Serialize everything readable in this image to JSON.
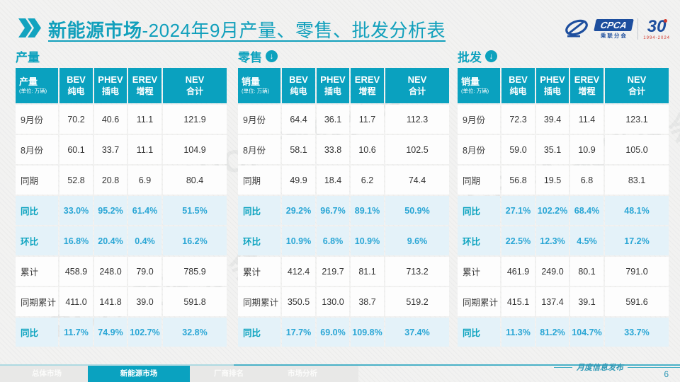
{
  "title": {
    "emphasis": "新能源市场",
    "rest": "-2024年9月产量、零售、批发分析表"
  },
  "logos": {
    "cpca": "CPCA",
    "cpca_sub": "乘联分会",
    "anniversary": "30",
    "anniversary_sub": "1994-2024"
  },
  "watermark": "CPCA 乘联分会",
  "tables": [
    {
      "section": "产量",
      "arrow": false,
      "measure": "产量",
      "unit": "(单位: 万辆)",
      "columns": [
        {
          "en": "BEV",
          "cn": "纯电"
        },
        {
          "en": "PHEV",
          "cn": "插电"
        },
        {
          "en": "EREV",
          "cn": "增程"
        },
        {
          "en": "NEV",
          "cn": "合计"
        }
      ],
      "rows": [
        {
          "label": "9月份",
          "values": [
            "70.2",
            "40.6",
            "11.1",
            "121.9"
          ],
          "highlight": false
        },
        {
          "label": "8月份",
          "values": [
            "60.1",
            "33.7",
            "11.1",
            "104.9"
          ],
          "highlight": false
        },
        {
          "label": "同期",
          "values": [
            "52.8",
            "20.8",
            "6.9",
            "80.4"
          ],
          "highlight": false
        },
        {
          "label": "同比",
          "values": [
            "33.0%",
            "95.2%",
            "61.4%",
            "51.5%"
          ],
          "highlight": true
        },
        {
          "label": "环比",
          "values": [
            "16.8%",
            "20.4%",
            "0.4%",
            "16.2%"
          ],
          "highlight": true
        },
        {
          "label": "累计",
          "values": [
            "458.9",
            "248.0",
            "79.0",
            "785.9"
          ],
          "highlight": false
        },
        {
          "label": "同期累计",
          "values": [
            "411.0",
            "141.8",
            "39.0",
            "591.8"
          ],
          "highlight": false
        },
        {
          "label": "同比",
          "values": [
            "11.7%",
            "74.9%",
            "102.7%",
            "32.8%"
          ],
          "highlight": true
        }
      ]
    },
    {
      "section": "零售",
      "arrow": true,
      "measure": "销量",
      "unit": "(单位: 万辆)",
      "columns": [
        {
          "en": "BEV",
          "cn": "纯电"
        },
        {
          "en": "PHEV",
          "cn": "插电"
        },
        {
          "en": "EREV",
          "cn": "增程"
        },
        {
          "en": "NEV",
          "cn": "合计"
        }
      ],
      "rows": [
        {
          "label": "9月份",
          "values": [
            "64.4",
            "36.1",
            "11.7",
            "112.3"
          ],
          "highlight": false
        },
        {
          "label": "8月份",
          "values": [
            "58.1",
            "33.8",
            "10.6",
            "102.5"
          ],
          "highlight": false
        },
        {
          "label": "同期",
          "values": [
            "49.9",
            "18.4",
            "6.2",
            "74.4"
          ],
          "highlight": false
        },
        {
          "label": "同比",
          "values": [
            "29.2%",
            "96.7%",
            "89.1%",
            "50.9%"
          ],
          "highlight": true
        },
        {
          "label": "环比",
          "values": [
            "10.9%",
            "6.8%",
            "10.9%",
            "9.6%"
          ],
          "highlight": true
        },
        {
          "label": "累计",
          "values": [
            "412.4",
            "219.7",
            "81.1",
            "713.2"
          ],
          "highlight": false
        },
        {
          "label": "同期累计",
          "values": [
            "350.5",
            "130.0",
            "38.7",
            "519.2"
          ],
          "highlight": false
        },
        {
          "label": "同比",
          "values": [
            "17.7%",
            "69.0%",
            "109.8%",
            "37.4%"
          ],
          "highlight": true
        }
      ]
    },
    {
      "section": "批发",
      "arrow": true,
      "measure": "销量",
      "unit": "(单位: 万辆)",
      "columns": [
        {
          "en": "BEV",
          "cn": "纯电"
        },
        {
          "en": "PHEV",
          "cn": "插电"
        },
        {
          "en": "EREV",
          "cn": "增程"
        },
        {
          "en": "NEV",
          "cn": "合计"
        }
      ],
      "rows": [
        {
          "label": "9月份",
          "values": [
            "72.3",
            "39.4",
            "11.4",
            "123.1"
          ],
          "highlight": false
        },
        {
          "label": "8月份",
          "values": [
            "59.0",
            "35.1",
            "10.9",
            "105.0"
          ],
          "highlight": false
        },
        {
          "label": "同期",
          "values": [
            "56.8",
            "19.5",
            "6.8",
            "83.1"
          ],
          "highlight": false
        },
        {
          "label": "同比",
          "values": [
            "27.1%",
            "102.2%",
            "68.4%",
            "48.1%"
          ],
          "highlight": true
        },
        {
          "label": "环比",
          "values": [
            "22.5%",
            "12.3%",
            "4.5%",
            "17.2%"
          ],
          "highlight": true
        },
        {
          "label": "累计",
          "values": [
            "461.9",
            "249.0",
            "80.1",
            "791.0"
          ],
          "highlight": false
        },
        {
          "label": "同期累计",
          "values": [
            "415.1",
            "137.4",
            "39.1",
            "591.6"
          ],
          "highlight": false
        },
        {
          "label": "同比",
          "values": [
            "11.3%",
            "81.2%",
            "104.7%",
            "33.7%"
          ],
          "highlight": true
        }
      ]
    }
  ],
  "footer": {
    "tabs": [
      {
        "label": "总体市场",
        "active": false
      },
      {
        "label": "新能源市场",
        "active": true
      },
      {
        "label": "厂商排名",
        "active": false
      },
      {
        "label": "市场分析",
        "active": false
      }
    ],
    "publication": "月度信息发布",
    "page": "6"
  }
}
